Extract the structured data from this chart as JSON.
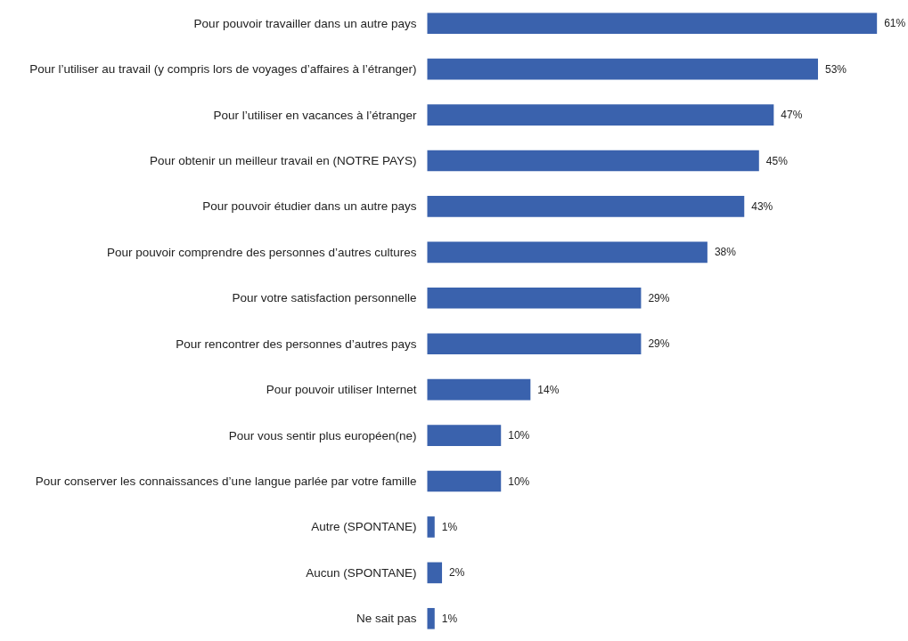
{
  "chart_data": {
    "type": "bar",
    "orientation": "horizontal",
    "color": "#3a62ad",
    "categories": [
      "Pour pouvoir travailler dans un autre pays",
      "Pour l’utiliser au travail (y compris lors de voyages d’affaires à l’étranger)",
      "Pour l’utiliser en vacances à l’étranger",
      "Pour obtenir un meilleur travail en (NOTRE PAYS)",
      "Pour pouvoir étudier dans un autre pays",
      "Pour pouvoir comprendre des personnes d’autres cultures",
      "Pour votre satisfaction personnelle",
      "Pour rencontrer des personnes d’autres pays",
      "Pour pouvoir utiliser Internet",
      "Pour vous sentir plus européen(ne)",
      "Pour conserver les connaissances d’une langue parlée par votre famille",
      "Autre (SPONTANE)",
      "Aucun (SPONTANE)",
      "Ne sait pas"
    ],
    "values": [
      61,
      53,
      47,
      45,
      43,
      38,
      29,
      29,
      14,
      10,
      10,
      1,
      2,
      1
    ],
    "value_labels": [
      "61%",
      "53%",
      "47%",
      "45%",
      "43%",
      "38%",
      "29%",
      "29%",
      "14%",
      "10%",
      "10%",
      "1%",
      "2%",
      "1%"
    ],
    "grid": false
  }
}
